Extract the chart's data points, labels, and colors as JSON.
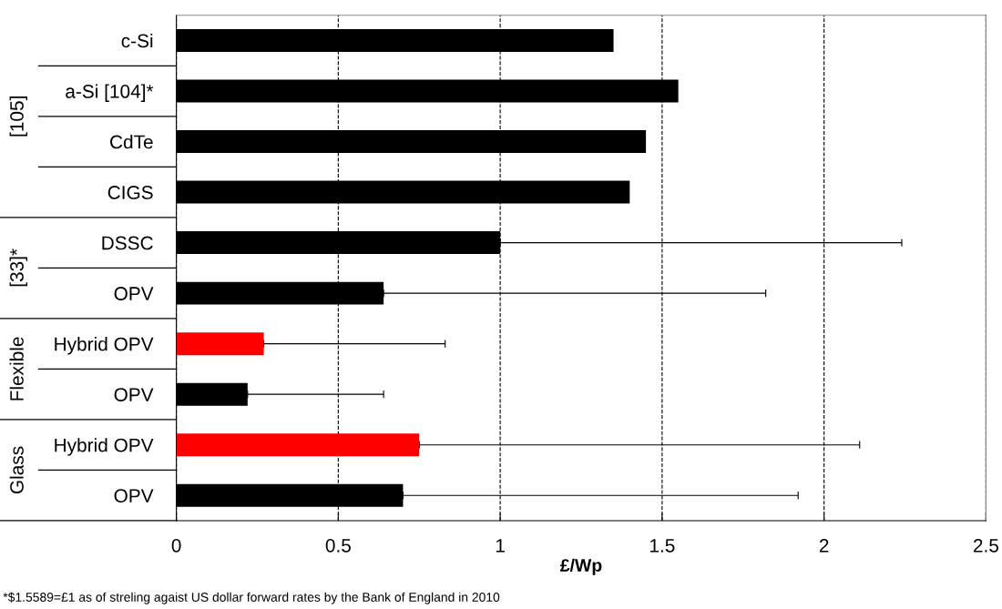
{
  "chart_data": {
    "type": "bar",
    "orientation": "horizontal",
    "xlabel": "£/Wp",
    "categories": [
      "c-Si",
      "a-Si [104]*",
      "CdTe",
      "CIGS",
      "DSSC",
      "OPV",
      "Hybrid OPV",
      "OPV",
      "Hybrid OPV",
      "OPV"
    ],
    "values": [
      1.35,
      1.55,
      1.45,
      1.4,
      1.0,
      0.64,
      0.27,
      0.22,
      0.75,
      0.7
    ],
    "colors": [
      "#000000",
      "#000000",
      "#000000",
      "#000000",
      "#000000",
      "#000000",
      "#ff0000",
      "#000000",
      "#ff0000",
      "#000000"
    ],
    "errors": [
      null,
      null,
      null,
      null,
      [
        1.0,
        2.24
      ],
      [
        0.64,
        1.82
      ],
      [
        0.27,
        0.83
      ],
      [
        0.22,
        0.64
      ],
      [
        0.75,
        2.11
      ],
      [
        0.7,
        1.92
      ]
    ],
    "xlim": [
      0,
      2.5
    ],
    "xticks": [
      0,
      0.5,
      1,
      1.5,
      2,
      2.5
    ],
    "grid": "x",
    "annotations": [
      "[105]",
      "[33]*",
      "Flexible",
      "Glass",
      "*$1.5589=£1 as of streling agaist US dollar forward rates by the Bank of England in 2010"
    ]
  }
}
